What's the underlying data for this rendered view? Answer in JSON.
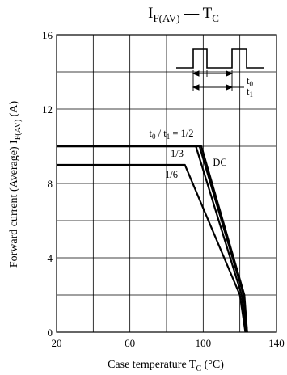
{
  "chart_data": {
    "type": "line",
    "title": {
      "main": "I",
      "sub": "F(AV)",
      "dash": "—",
      "var": "T",
      "varsub": "C"
    },
    "xlabel": {
      "text": "Case temperature  T",
      "sub": "C",
      "unit": " (°C)"
    },
    "ylabel": {
      "text": "Forward current (Average)  I",
      "sub": "F(AV)",
      "unit": "  (A)"
    },
    "xlim": [
      20,
      140
    ],
    "ylim": [
      0,
      16
    ],
    "xticks": [
      20,
      60,
      100,
      140
    ],
    "yticks": [
      0,
      4,
      8,
      12,
      16
    ],
    "grid": true,
    "series": [
      {
        "name": "t0 / t1 = 1/2",
        "points": [
          [
            20,
            10
          ],
          [
            98,
            10
          ],
          [
            122,
            2
          ],
          [
            124,
            0
          ]
        ]
      },
      {
        "name": "1/3",
        "points": [
          [
            20,
            10
          ],
          [
            96,
            10
          ],
          [
            121,
            2
          ],
          [
            123.5,
            0
          ]
        ]
      },
      {
        "name": "1/6",
        "points": [
          [
            20,
            9
          ],
          [
            90,
            9
          ],
          [
            120,
            2
          ],
          [
            123,
            0
          ]
        ]
      },
      {
        "name": "DC",
        "points": [
          [
            20,
            10
          ],
          [
            99,
            10
          ],
          [
            122.5,
            2
          ],
          [
            124,
            0
          ]
        ]
      }
    ],
    "annotations": {
      "half": {
        "t0": "t",
        "t0sub": "0",
        "slash": " / t",
        "t1sub": "1",
        "val": " = 1/2"
      },
      "third": "1/3",
      "sixth": "1/6",
      "dc": "DC"
    },
    "inset": {
      "t0": "t",
      "t0sub": "0",
      "t1": "t",
      "t1sub": "1"
    }
  }
}
